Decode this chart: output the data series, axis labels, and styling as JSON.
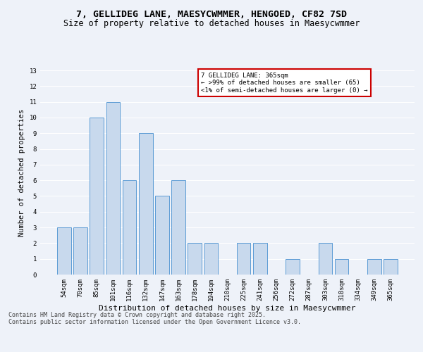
{
  "title1": "7, GELLIDEG LANE, MAESYCWMMER, HENGOED, CF82 7SD",
  "title2": "Size of property relative to detached houses in Maesycwmmer",
  "xlabel": "Distribution of detached houses by size in Maesycwmmer",
  "ylabel": "Number of detached properties",
  "categories": [
    "54sqm",
    "70sqm",
    "85sqm",
    "101sqm",
    "116sqm",
    "132sqm",
    "147sqm",
    "163sqm",
    "178sqm",
    "194sqm",
    "210sqm",
    "225sqm",
    "241sqm",
    "256sqm",
    "272sqm",
    "287sqm",
    "303sqm",
    "318sqm",
    "334sqm",
    "349sqm",
    "365sqm"
  ],
  "values": [
    3,
    3,
    10,
    11,
    6,
    9,
    5,
    6,
    2,
    2,
    0,
    2,
    2,
    0,
    1,
    0,
    2,
    1,
    0,
    1,
    1
  ],
  "bar_color": "#c8d9ed",
  "bar_edge_color": "#5b9bd5",
  "annotation_box_color": "#ffffff",
  "annotation_box_edge": "#cc0000",
  "annotation_text": "7 GELLIDEG LANE: 365sqm\n← >99% of detached houses are smaller (65)\n<1% of semi-detached houses are larger (0) →",
  "annotation_fontsize": 6.5,
  "ylim": [
    0,
    13
  ],
  "yticks": [
    0,
    1,
    2,
    3,
    4,
    5,
    6,
    7,
    8,
    9,
    10,
    11,
    12,
    13
  ],
  "footer": "Contains HM Land Registry data © Crown copyright and database right 2025.\nContains public sector information licensed under the Open Government Licence v3.0.",
  "bg_color": "#eef2f9",
  "grid_color": "#ffffff",
  "title1_fontsize": 9.5,
  "title2_fontsize": 8.5,
  "xlabel_fontsize": 8,
  "ylabel_fontsize": 7.5,
  "tick_fontsize": 6.5,
  "footer_fontsize": 6.0
}
